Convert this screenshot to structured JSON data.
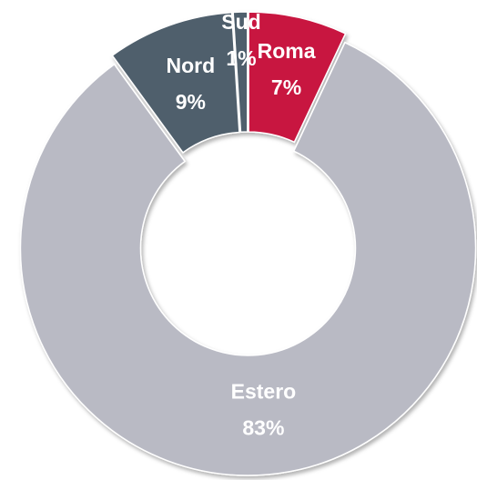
{
  "chart_data": {
    "type": "donut",
    "categories": [
      "Roma",
      "Estero",
      "Nord",
      "Sud"
    ],
    "values": [
      7,
      83,
      9,
      1
    ],
    "value_labels": [
      "7%",
      "83%",
      "9%",
      "1%"
    ],
    "colors": [
      "#c8143f",
      "#b9bac4",
      "#4f5f6c",
      "#4f5f6c"
    ]
  }
}
